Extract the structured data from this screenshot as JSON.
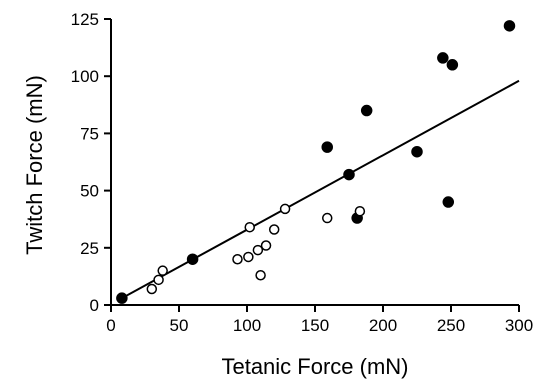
{
  "chart_data": {
    "type": "scatter",
    "title": "",
    "xlabel": "Tetanic Force (mN)",
    "ylabel": "Twitch Force (mN)",
    "xlim": [
      0,
      300
    ],
    "ylim": [
      0,
      125
    ],
    "xticks": [
      0,
      50,
      100,
      150,
      200,
      250,
      300
    ],
    "yticks": [
      0,
      25,
      50,
      75,
      100,
      125
    ],
    "grid": false,
    "legend": "none",
    "series": [
      {
        "marker": "filled-circle",
        "points": [
          {
            "x": 8,
            "y": 3
          },
          {
            "x": 60,
            "y": 20
          },
          {
            "x": 159,
            "y": 69
          },
          {
            "x": 175,
            "y": 57
          },
          {
            "x": 181,
            "y": 38
          },
          {
            "x": 188,
            "y": 85
          },
          {
            "x": 225,
            "y": 67
          },
          {
            "x": 244,
            "y": 108
          },
          {
            "x": 248,
            "y": 45
          },
          {
            "x": 251,
            "y": 105
          },
          {
            "x": 293,
            "y": 122
          }
        ]
      },
      {
        "marker": "open-circle",
        "points": [
          {
            "x": 30,
            "y": 7
          },
          {
            "x": 35,
            "y": 11
          },
          {
            "x": 38,
            "y": 15
          },
          {
            "x": 93,
            "y": 20
          },
          {
            "x": 101,
            "y": 21
          },
          {
            "x": 102,
            "y": 34
          },
          {
            "x": 108,
            "y": 24
          },
          {
            "x": 110,
            "y": 13
          },
          {
            "x": 114,
            "y": 26
          },
          {
            "x": 120,
            "y": 33
          },
          {
            "x": 128,
            "y": 42
          },
          {
            "x": 159,
            "y": 38
          },
          {
            "x": 183,
            "y": 41
          }
        ]
      }
    ],
    "fit_line": {
      "x1": 5,
      "y1": 2,
      "x2": 300,
      "y2": 98
    }
  }
}
